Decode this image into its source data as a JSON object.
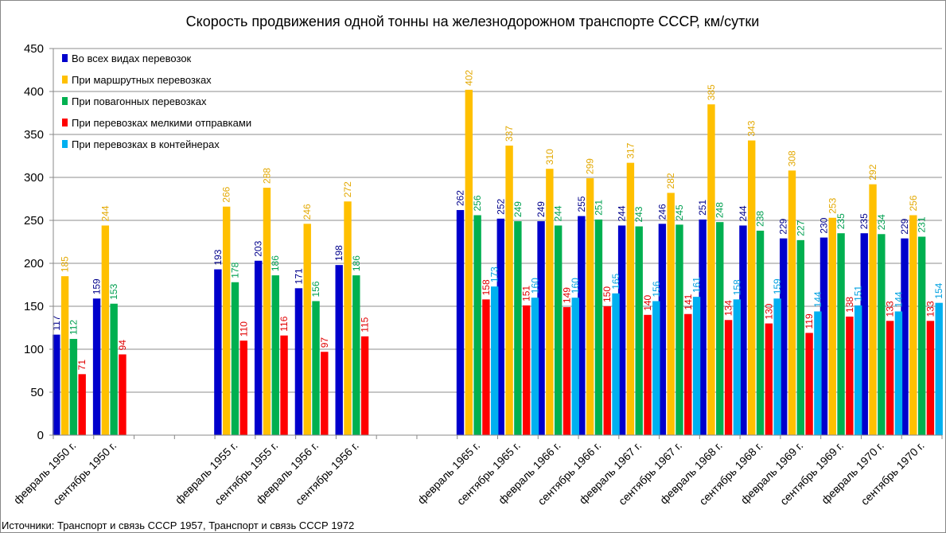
{
  "chart_data": {
    "type": "bar",
    "title": "Скорость продвижения одной тонны на железнодорожном транспорте СССР, км/сутки",
    "xlabel": "",
    "ylabel": "",
    "ylim": [
      0,
      450
    ],
    "yticks": [
      "0",
      "50",
      "100",
      "150",
      "200",
      "250",
      "300",
      "350",
      "400",
      "450"
    ],
    "grid": true,
    "legend_position": "top-left",
    "categories": [
      "февраль 1950 г.",
      "сентябрь 1950 г.",
      "",
      "",
      "февраль 1955 г.",
      "сентябрь 1955 г.",
      "февраль 1956 г.",
      "сентябрь 1956 г.",
      "",
      "",
      "февраль 1965 г.",
      "сентябрь 1965 г.",
      "февраль 1966 г.",
      "сентябрь 1966 г.",
      "февраль 1967 г.",
      "сентябрь 1967 г.",
      "февраль 1968 г.",
      "сентябрь 1968 г.",
      "февраль 1969 г.",
      "сентябрь 1969 г.",
      "февраль 1970 г.",
      "сентябрь 1970 г."
    ],
    "series": [
      {
        "name": "Во всех видах перевозок",
        "color": "#0000CC",
        "label_color": "#00008B",
        "values": [
          117,
          159,
          null,
          null,
          193,
          203,
          171,
          198,
          null,
          null,
          262,
          252,
          249,
          255,
          244,
          246,
          251,
          244,
          229,
          230,
          235,
          229
        ]
      },
      {
        "name": "При маршрутных перевозках",
        "color": "#FFC000",
        "label_color": "#E3A800",
        "values": [
          185,
          244,
          null,
          null,
          266,
          288,
          246,
          272,
          null,
          null,
          402,
          337,
          310,
          299,
          317,
          282,
          385,
          343,
          308,
          253,
          292,
          256
        ]
      },
      {
        "name": "При повагонных перевозках",
        "color": "#00B050",
        "label_color": "#00A050",
        "values": [
          112,
          153,
          null,
          null,
          178,
          186,
          156,
          186,
          null,
          null,
          256,
          249,
          244,
          251,
          243,
          245,
          248,
          238,
          227,
          235,
          234,
          231
        ]
      },
      {
        "name": "При перевозках мелкими отправками",
        "color": "#FF0000",
        "label_color": "#E00000",
        "values": [
          71,
          94,
          null,
          null,
          110,
          116,
          97,
          115,
          null,
          null,
          158,
          151,
          149,
          150,
          140,
          141,
          134,
          130,
          119,
          138,
          133,
          133
        ]
      },
      {
        "name": "При перевозках в контейнерах",
        "color": "#00B0F0",
        "label_color": "#00A0E0",
        "values": [
          null,
          null,
          null,
          null,
          null,
          null,
          null,
          null,
          null,
          null,
          173,
          160,
          160,
          165,
          156,
          161,
          158,
          159,
          144,
          151,
          144,
          154
        ]
      }
    ]
  },
  "source_note": "Источники: Транспорт и связь СССР 1957, Транспорт и связь СССР 1972"
}
